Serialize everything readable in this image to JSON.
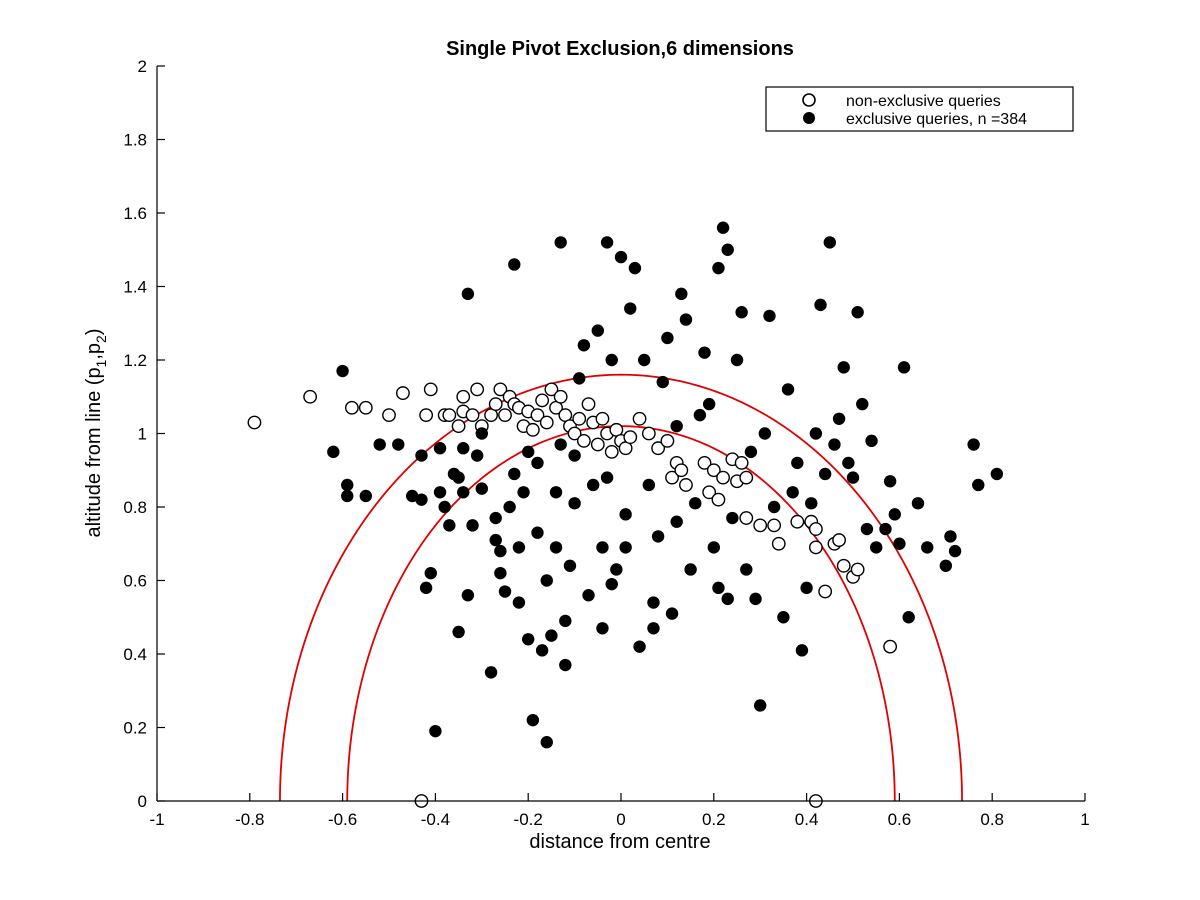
{
  "chart_data": {
    "type": "scatter",
    "title": "Single Pivot Exclusion,6 dimensions",
    "xlabel": "distance from centre",
    "ylabel": "altitude from line (p1,p2)",
    "ylabel_parts": {
      "prefix": "altitude from line (p",
      "sub1": "1",
      "mid": ",p",
      "sub2": "2",
      "suffix": ")"
    },
    "xlim": [
      -1,
      1
    ],
    "ylim": [
      0,
      2
    ],
    "xticks": [
      "-1",
      "-0.8",
      "-0.6",
      "-0.4",
      "-0.2",
      "0",
      "0.2",
      "0.4",
      "0.6",
      "0.8",
      "1"
    ],
    "yticks": [
      "0",
      "0.2",
      "0.4",
      "0.6",
      "0.8",
      "1",
      "1.2",
      "1.4",
      "1.6",
      "1.8",
      "2"
    ],
    "legend": {
      "location": "top-right",
      "entries": [
        "non-exclusive queries",
        "exclusive queries, n =384"
      ]
    },
    "colors": {
      "curve": "#e00000",
      "marker": "#000000",
      "axis": "#000000"
    },
    "curves": [
      {
        "name": "inner-boundary",
        "type": "circle-arc",
        "center": [
          0,
          0
        ],
        "radius": 0.59,
        "center_y_offset": -0.02,
        "note": "passes through (0.59,0) and (0,1.02)"
      },
      {
        "name": "outer-boundary",
        "type": "circle-arc",
        "center": [
          0,
          0
        ],
        "radius": 0.735,
        "note": "passes through (0.735,0) and (0,1.16)"
      }
    ],
    "series": [
      {
        "name": "non-exclusive queries",
        "marker": "open-circle",
        "points": [
          [
            -0.79,
            1.03
          ],
          [
            -0.67,
            1.1
          ],
          [
            -0.58,
            1.07
          ],
          [
            -0.55,
            1.07
          ],
          [
            -0.5,
            1.05
          ],
          [
            -0.47,
            1.11
          ],
          [
            -0.42,
            1.05
          ],
          [
            -0.41,
            1.12
          ],
          [
            -0.38,
            1.05
          ],
          [
            -0.37,
            1.05
          ],
          [
            -0.35,
            1.02
          ],
          [
            -0.34,
            1.06
          ],
          [
            -0.34,
            1.1
          ],
          [
            -0.32,
            1.05
          ],
          [
            -0.31,
            1.12
          ],
          [
            -0.3,
            1.02
          ],
          [
            -0.28,
            1.05
          ],
          [
            -0.27,
            1.08
          ],
          [
            -0.26,
            1.12
          ],
          [
            -0.25,
            1.05
          ],
          [
            -0.24,
            1.1
          ],
          [
            -0.23,
            1.08
          ],
          [
            -0.22,
            1.07
          ],
          [
            -0.21,
            1.02
          ],
          [
            -0.2,
            1.06
          ],
          [
            -0.19,
            1.01
          ],
          [
            -0.18,
            1.05
          ],
          [
            -0.17,
            1.09
          ],
          [
            -0.16,
            1.03
          ],
          [
            -0.15,
            1.12
          ],
          [
            -0.14,
            1.07
          ],
          [
            -0.13,
            1.1
          ],
          [
            -0.12,
            1.05
          ],
          [
            -0.11,
            1.02
          ],
          [
            -0.1,
            1.0
          ],
          [
            -0.09,
            1.04
          ],
          [
            -0.08,
            0.98
          ],
          [
            -0.07,
            1.08
          ],
          [
            -0.06,
            1.03
          ],
          [
            -0.05,
            0.97
          ],
          [
            -0.04,
            1.04
          ],
          [
            -0.03,
            1.0
          ],
          [
            -0.02,
            0.95
          ],
          [
            -0.01,
            1.01
          ],
          [
            0.0,
            0.98
          ],
          [
            0.01,
            0.96
          ],
          [
            0.02,
            0.99
          ],
          [
            0.04,
            1.04
          ],
          [
            0.06,
            1.0
          ],
          [
            0.08,
            0.96
          ],
          [
            0.1,
            0.98
          ],
          [
            0.11,
            0.88
          ],
          [
            0.12,
            0.92
          ],
          [
            0.13,
            0.9
          ],
          [
            0.14,
            0.86
          ],
          [
            0.18,
            0.92
          ],
          [
            0.19,
            0.84
          ],
          [
            0.2,
            0.9
          ],
          [
            0.21,
            0.82
          ],
          [
            0.22,
            0.88
          ],
          [
            0.24,
            0.93
          ],
          [
            0.25,
            0.87
          ],
          [
            0.26,
            0.92
          ],
          [
            0.27,
            0.88
          ],
          [
            0.27,
            0.77
          ],
          [
            0.3,
            0.75
          ],
          [
            0.33,
            0.75
          ],
          [
            0.34,
            0.7
          ],
          [
            0.38,
            0.76
          ],
          [
            0.41,
            0.76
          ],
          [
            0.42,
            0.74
          ],
          [
            0.42,
            0.69
          ],
          [
            0.44,
            0.57
          ],
          [
            0.46,
            0.7
          ],
          [
            0.47,
            0.71
          ],
          [
            0.48,
            0.64
          ],
          [
            0.5,
            0.61
          ],
          [
            0.51,
            0.63
          ],
          [
            0.58,
            0.42
          ],
          [
            -0.43,
            0.0
          ],
          [
            0.42,
            0.0
          ]
        ]
      },
      {
        "name": "exclusive queries, n =384",
        "marker": "filled-circle",
        "points": [
          [
            -0.6,
            1.17
          ],
          [
            -0.62,
            0.95
          ],
          [
            -0.59,
            0.86
          ],
          [
            -0.59,
            0.83
          ],
          [
            -0.55,
            0.83
          ],
          [
            -0.52,
            0.97
          ],
          [
            -0.48,
            0.97
          ],
          [
            -0.45,
            0.83
          ],
          [
            -0.43,
            0.94
          ],
          [
            -0.43,
            0.82
          ],
          [
            -0.42,
            0.58
          ],
          [
            -0.41,
            0.62
          ],
          [
            -0.4,
            0.19
          ],
          [
            -0.39,
            0.96
          ],
          [
            -0.39,
            0.84
          ],
          [
            -0.38,
            0.8
          ],
          [
            -0.37,
            0.75
          ],
          [
            -0.36,
            0.89
          ],
          [
            -0.35,
            0.46
          ],
          [
            -0.35,
            0.88
          ],
          [
            -0.34,
            0.96
          ],
          [
            -0.34,
            0.84
          ],
          [
            -0.33,
            0.56
          ],
          [
            -0.33,
            1.38
          ],
          [
            -0.32,
            0.75
          ],
          [
            -0.31,
            0.94
          ],
          [
            -0.3,
            0.85
          ],
          [
            -0.3,
            1.0
          ],
          [
            -0.28,
            0.35
          ],
          [
            -0.27,
            0.71
          ],
          [
            -0.27,
            0.77
          ],
          [
            -0.26,
            0.68
          ],
          [
            -0.26,
            0.62
          ],
          [
            -0.25,
            0.57
          ],
          [
            -0.24,
            0.8
          ],
          [
            -0.23,
            0.89
          ],
          [
            -0.23,
            1.46
          ],
          [
            -0.22,
            0.54
          ],
          [
            -0.22,
            0.69
          ],
          [
            -0.21,
            0.84
          ],
          [
            -0.2,
            0.95
          ],
          [
            -0.2,
            0.44
          ],
          [
            -0.19,
            0.22
          ],
          [
            -0.18,
            0.73
          ],
          [
            -0.18,
            0.92
          ],
          [
            -0.17,
            0.41
          ],
          [
            -0.16,
            0.16
          ],
          [
            -0.16,
            0.6
          ],
          [
            -0.15,
            0.45
          ],
          [
            -0.14,
            0.69
          ],
          [
            -0.14,
            0.84
          ],
          [
            -0.13,
            0.97
          ],
          [
            -0.13,
            1.52
          ],
          [
            -0.12,
            0.37
          ],
          [
            -0.12,
            0.49
          ],
          [
            -0.11,
            0.64
          ],
          [
            -0.1,
            0.81
          ],
          [
            -0.1,
            0.94
          ],
          [
            -0.09,
            1.15
          ],
          [
            -0.08,
            1.24
          ],
          [
            -0.07,
            0.56
          ],
          [
            -0.06,
            0.86
          ],
          [
            -0.05,
            1.28
          ],
          [
            -0.04,
            0.47
          ],
          [
            -0.04,
            0.69
          ],
          [
            -0.03,
            0.88
          ],
          [
            -0.03,
            1.52
          ],
          [
            -0.02,
            0.59
          ],
          [
            -0.02,
            1.2
          ],
          [
            -0.01,
            0.63
          ],
          [
            0.0,
            1.48
          ],
          [
            0.01,
            0.69
          ],
          [
            0.01,
            0.78
          ],
          [
            0.02,
            1.34
          ],
          [
            0.03,
            1.45
          ],
          [
            0.04,
            0.42
          ],
          [
            0.05,
            1.2
          ],
          [
            0.06,
            0.86
          ],
          [
            0.07,
            0.47
          ],
          [
            0.07,
            0.54
          ],
          [
            0.08,
            0.72
          ],
          [
            0.09,
            1.14
          ],
          [
            0.1,
            1.26
          ],
          [
            0.11,
            0.51
          ],
          [
            0.12,
            0.76
          ],
          [
            0.12,
            1.02
          ],
          [
            0.13,
            1.38
          ],
          [
            0.14,
            1.31
          ],
          [
            0.15,
            0.63
          ],
          [
            0.16,
            0.81
          ],
          [
            0.17,
            1.05
          ],
          [
            0.18,
            1.22
          ],
          [
            0.19,
            1.08
          ],
          [
            0.2,
            0.69
          ],
          [
            0.21,
            0.58
          ],
          [
            0.21,
            1.45
          ],
          [
            0.22,
            1.56
          ],
          [
            0.23,
            1.5
          ],
          [
            0.23,
            0.55
          ],
          [
            0.24,
            0.77
          ],
          [
            0.25,
            1.2
          ],
          [
            0.26,
            1.33
          ],
          [
            0.27,
            0.63
          ],
          [
            0.28,
            0.95
          ],
          [
            0.29,
            0.55
          ],
          [
            0.3,
            0.26
          ],
          [
            0.31,
            1.0
          ],
          [
            0.32,
            1.32
          ],
          [
            0.33,
            0.8
          ],
          [
            0.35,
            0.5
          ],
          [
            0.36,
            1.12
          ],
          [
            0.37,
            0.84
          ],
          [
            0.38,
            0.92
          ],
          [
            0.39,
            0.41
          ],
          [
            0.4,
            0.58
          ],
          [
            0.41,
            0.81
          ],
          [
            0.42,
            1.0
          ],
          [
            0.43,
            1.35
          ],
          [
            0.44,
            0.89
          ],
          [
            0.45,
            1.52
          ],
          [
            0.46,
            0.97
          ],
          [
            0.47,
            1.04
          ],
          [
            0.48,
            1.18
          ],
          [
            0.49,
            0.92
          ],
          [
            0.5,
            0.88
          ],
          [
            0.51,
            1.33
          ],
          [
            0.52,
            1.08
          ],
          [
            0.53,
            0.74
          ],
          [
            0.54,
            0.98
          ],
          [
            0.55,
            0.69
          ],
          [
            0.57,
            0.74
          ],
          [
            0.58,
            0.87
          ],
          [
            0.59,
            0.78
          ],
          [
            0.6,
            0.7
          ],
          [
            0.61,
            1.18
          ],
          [
            0.62,
            0.5
          ],
          [
            0.64,
            0.81
          ],
          [
            0.66,
            0.69
          ],
          [
            0.7,
            0.64
          ],
          [
            0.71,
            0.72
          ],
          [
            0.72,
            0.68
          ],
          [
            0.76,
            0.97
          ],
          [
            0.77,
            0.86
          ],
          [
            0.81,
            0.89
          ]
        ]
      }
    ]
  }
}
